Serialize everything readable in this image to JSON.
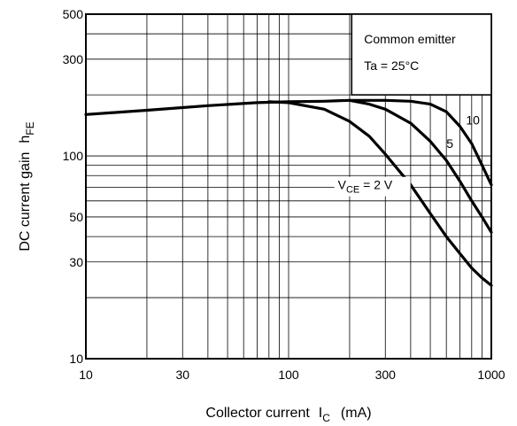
{
  "chart_data": {
    "type": "line",
    "xlabel_main": "Collector current",
    "xlabel_symbol": "I",
    "xlabel_sub": "C",
    "xlabel_unit": "(mA)",
    "ylabel_main": "DC current gain",
    "ylabel_symbol": "h",
    "ylabel_sub": "FE",
    "x_scale": "log",
    "y_scale": "log",
    "xlim": [
      10,
      1000
    ],
    "ylim": [
      10,
      500
    ],
    "x_tick_labels": [
      {
        "value": 10,
        "label": "10"
      },
      {
        "value": 30,
        "label": "30"
      },
      {
        "value": 100,
        "label": "100"
      },
      {
        "value": 300,
        "label": "300"
      },
      {
        "value": 1000,
        "label": "1000"
      }
    ],
    "y_tick_labels": [
      {
        "value": 10,
        "label": "10"
      },
      {
        "value": 30,
        "label": "30"
      },
      {
        "value": 50,
        "label": "50"
      },
      {
        "value": 100,
        "label": "100"
      },
      {
        "value": 300,
        "label": "300"
      },
      {
        "value": 500,
        "label": "500"
      }
    ],
    "grid": true,
    "legend_box": {
      "line1": "Common emitter",
      "line2": "Ta = 25°C"
    },
    "series": [
      {
        "name": "10",
        "x": [
          10,
          20,
          40,
          70,
          100,
          150,
          200,
          300,
          400,
          500,
          600,
          700,
          800,
          900,
          1000
        ],
        "y": [
          160,
          168,
          177,
          183,
          185,
          186,
          188,
          188,
          186,
          180,
          165,
          140,
          115,
          90,
          72
        ]
      },
      {
        "name": "5",
        "x": [
          200,
          250,
          300,
          400,
          500,
          600,
          700,
          800,
          900,
          1000
        ],
        "y": [
          188,
          180,
          170,
          145,
          118,
          95,
          75,
          60,
          50,
          42
        ]
      },
      {
        "name_prefix": "V",
        "name_sub": "CE",
        "name_suffix": " = 2 V",
        "x": [
          80,
          100,
          150,
          200,
          250,
          300,
          400,
          500,
          600,
          700,
          800,
          900,
          1000
        ],
        "y": [
          185,
          183,
          170,
          148,
          125,
          102,
          72,
          52,
          40,
          33,
          28,
          25,
          23
        ]
      }
    ]
  }
}
